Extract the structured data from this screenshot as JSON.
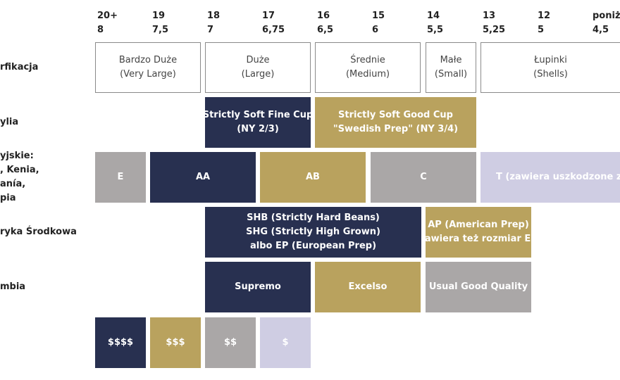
{
  "scale": {
    "screen_sizes": [
      "20+",
      "19",
      "18",
      "17",
      "16",
      "15",
      "14",
      "13",
      "12",
      "poniżej"
    ],
    "mm_sizes": [
      "8",
      "7,5",
      "7",
      "6,75",
      "6,5",
      "6",
      "5,5",
      "5,25",
      "5",
      "4,5"
    ]
  },
  "rows": {
    "klasyfikacja": {
      "label": "rfikacja",
      "cells": [
        {
          "line1": "Bardzo Duże",
          "line2": "(Very Large)"
        },
        {
          "line1": "Duże",
          "line2": "(Large)"
        },
        {
          "line1": "Średnie",
          "line2": "(Medium)"
        },
        {
          "line1": "Małe",
          "line2": "(Small)"
        },
        {
          "line1": "Łupinki",
          "line2": "(Shells)"
        }
      ]
    },
    "brazylia": {
      "label": "ylia",
      "cells": [
        {
          "line1": "Strictly Soft Fine Cup",
          "line2": "(NY 2/3)"
        },
        {
          "line1": "Strictly Soft Good Cup",
          "line2": "\"Swedish Prep\" (NY 3/4)"
        }
      ]
    },
    "afrykanskie": {
      "label_lines": [
        "yjskie:",
        ", Kenia,",
        "anía,",
        "pia"
      ],
      "cells": [
        "E",
        "AA",
        "AB",
        "C",
        "T (zawiera uszkodzone ziarna)"
      ]
    },
    "ameryka_srodkowa": {
      "label": "ryka Środkowa",
      "cells": [
        {
          "line1": "SHB (Strictly Hard Beans)",
          "line2": "SHG (Strictly High Grown)",
          "line3": "albo EP (European Prep)"
        },
        {
          "line1": "AP (American Prep)",
          "line2": "zawiera też rozmiar EP"
        }
      ]
    },
    "kolumbia": {
      "label": "mbia",
      "cells": [
        "Supremo",
        "Excelso",
        "Usual Good Quality"
      ]
    },
    "cena": {
      "cells": [
        "$$$$",
        "$$$",
        "$$",
        "$"
      ]
    }
  },
  "colors": {
    "navy": "#283050",
    "gold": "#b9a25e",
    "grey": "#aaa7a7",
    "lavender": "#cfcde3",
    "outline": "#8a8a8a"
  }
}
